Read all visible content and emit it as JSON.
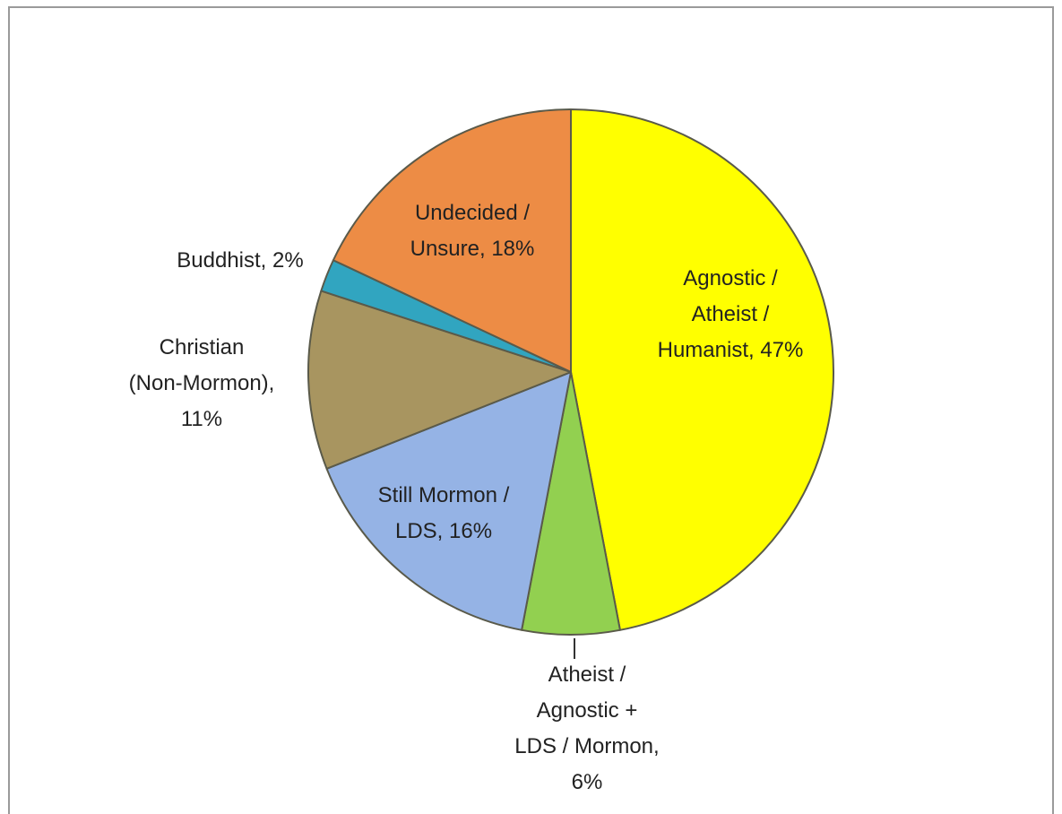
{
  "chart_data": {
    "type": "pie",
    "values": [
      47,
      6,
      16,
      11,
      2,
      18
    ],
    "value_labels": [
      [
        "Agnostic /",
        "Atheist /",
        "Humanist, 47%"
      ],
      [
        "Atheist /",
        "Agnostic +",
        "LDS / Mormon,",
        "6%"
      ],
      [
        "Still Mormon /",
        "LDS, 16%"
      ],
      [
        "Christian",
        "(Non-Mormon),",
        "11%"
      ],
      [
        "Buddhist, 2%"
      ],
      [
        "Undecided /",
        "Unsure, 18%"
      ]
    ],
    "colors": [
      "#ffff00",
      "#92d050",
      "#95b3e5",
      "#a89560",
      "#31a5c0",
      "#ed8c45"
    ]
  }
}
